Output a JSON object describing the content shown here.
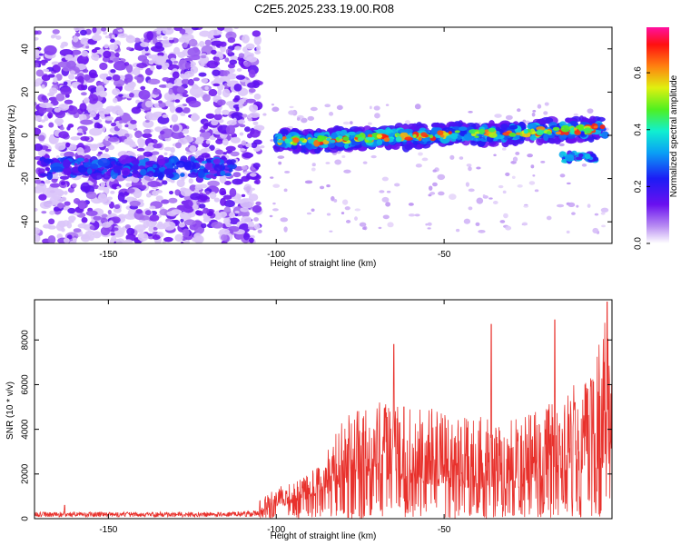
{
  "title": "C2E5.2025.233.19.00.R08",
  "colors": {
    "snr_line": "#e8312c",
    "spectrogram_purple": "#6a10f0",
    "spectrogram_light": "#d9c2f5"
  },
  "chart_data": [
    {
      "type": "heatmap",
      "id": "spectrogram",
      "xlabel": "Height of straight line (km)",
      "ylabel": "Frequency (Hz)",
      "xlim": [
        -172,
        0
      ],
      "ylim": [
        -50,
        50
      ],
      "xticks": [
        -150,
        -100,
        -50
      ],
      "yticks": [
        -40,
        -20,
        0,
        20,
        40
      ],
      "grid": false,
      "colorbar": {
        "label": "Normalized spectral amplitude",
        "range": [
          0.0,
          0.76
        ],
        "ticks": [
          0.0,
          0.2,
          0.4,
          0.6
        ],
        "colormap": "purple-blue-cyan-green-yellow-orange-red-magenta"
      },
      "features": [
        {
          "name": "broadband noise region",
          "x_range": [
            -172,
            -105
          ],
          "freq_range": [
            -50,
            50
          ],
          "amplitude": 0.05
        },
        {
          "name": "secondary track",
          "x_range": [
            -170,
            -112
          ],
          "freq_center": -15,
          "amplitude": 0.15
        },
        {
          "name": "primary track",
          "x_range": [
            -100,
            -2
          ],
          "freq_start": -3,
          "freq_end": 3,
          "amplitude": 0.5
        },
        {
          "name": "weak lower track",
          "x_range": [
            -15,
            -4
          ],
          "freq_center": -10,
          "amplitude": 0.3
        }
      ]
    },
    {
      "type": "line",
      "id": "snr",
      "xlabel": "Height of straight line (km)",
      "ylabel": "SNR (10 * v/v)",
      "xlim": [
        -172,
        0
      ],
      "ylim": [
        0,
        9800
      ],
      "xticks": [
        -150,
        -100,
        -50
      ],
      "yticks": [
        0,
        2000,
        4000,
        6000,
        8000
      ],
      "grid": false,
      "series": [
        {
          "name": "SNR",
          "envelope": {
            "x": [
              -172,
              -130,
              -115,
              -105,
              -100,
              -95,
              -90,
              -85,
              -80,
              -75,
              -70,
              -65,
              -60,
              -55,
              -50,
              -45,
              -40,
              -35,
              -30,
              -25,
              -20,
              -15,
              -10,
              -5,
              -2,
              0
            ],
            "baseline": [
              250,
              250,
              250,
              300,
              500,
              700,
              900,
              1100,
              1500,
              1700,
              1700,
              1600,
              1600,
              1500,
              1400,
              1400,
              1300,
              1300,
              1300,
              1500,
              1700,
              1800,
              2000,
              2200,
              2300,
              2300
            ],
            "upper": [
              350,
              400,
              500,
              800,
              1500,
              1600,
              2000,
              3100,
              4500,
              5000,
              5200,
              5200,
              5000,
              5000,
              4800,
              4600,
              4600,
              4500,
              4400,
              4700,
              5000,
              5600,
              6200,
              6900,
              9600,
              6000
            ]
          },
          "peaks": [
            {
              "x": -163,
              "y": 600
            },
            {
              "x": -65,
              "y": 7800
            },
            {
              "x": -62,
              "y": 5000
            },
            {
              "x": -36,
              "y": 8700
            },
            {
              "x": -17,
              "y": 8900
            },
            {
              "x": -11,
              "y": 5200
            },
            {
              "x": -1.5,
              "y": 9700
            }
          ]
        }
      ]
    }
  ]
}
